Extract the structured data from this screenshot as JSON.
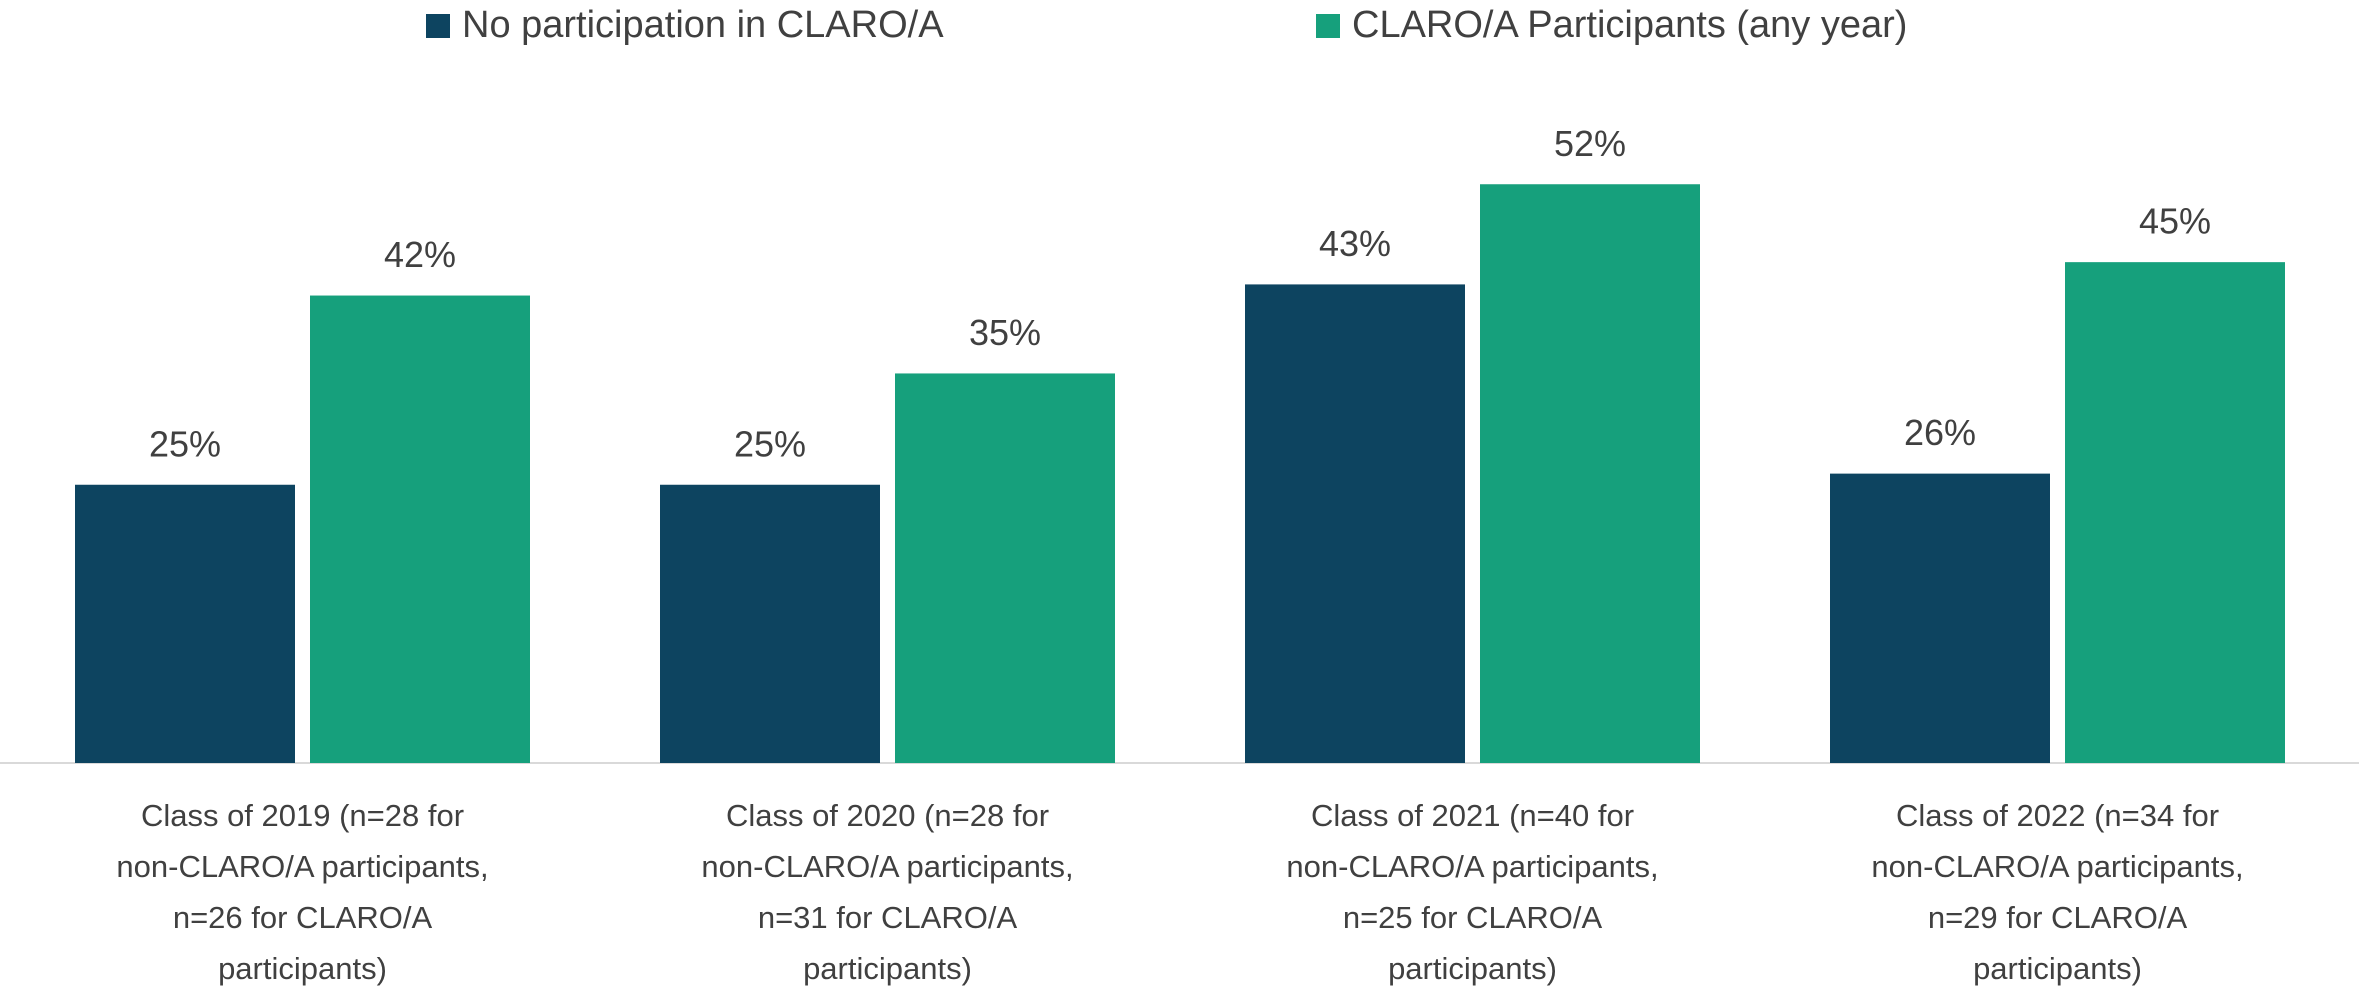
{
  "chart_data": {
    "type": "bar",
    "categories": [
      "Class of 2019 (n=28 for non-CLARO/A participants, n=26 for CLARO/A participants)",
      "Class of 2020 (n=28 for non-CLARO/A participants, n=31 for CLARO/A participants)",
      "Class of 2021 (n=40 for non-CLARO/A participants, n=25 for CLARO/A participants)",
      "Class of 2022 (n=34 for non-CLARO/A participants, n=29 for CLARO/A participants)"
    ],
    "series": [
      {
        "name": "No participation in CLARO/A",
        "color": "#0d4460",
        "values": [
          25,
          25,
          43,
          26
        ],
        "value_labels": [
          "25%",
          "25%",
          "43%",
          "26%"
        ]
      },
      {
        "name": "CLARO/A Participants (any year)",
        "color": "#16a07c",
        "values": [
          42,
          35,
          52,
          45
        ],
        "value_labels": [
          "42%",
          "35%",
          "52%",
          "45%"
        ]
      }
    ],
    "legend": "top"
  }
}
